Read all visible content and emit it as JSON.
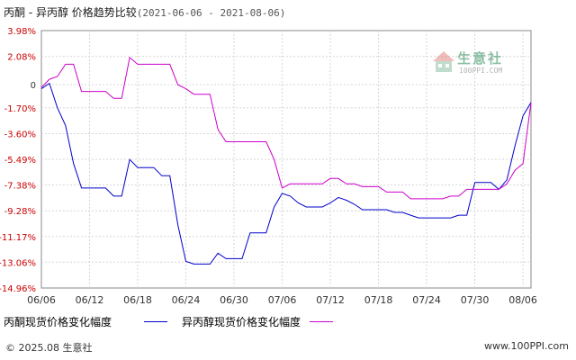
{
  "header": {
    "title": "丙酮 - 异丙醇 价格趋势比较",
    "date_range": "(2021-06-06 - 2021-08-06)"
  },
  "watermark": {
    "name": "生意社",
    "url": "100PPI.COM",
    "colors": {
      "green": "#2e8b57",
      "red": "#d9534f"
    }
  },
  "footer": {
    "copyright": "© 2025.08 生意社",
    "site": "www.100PPI.com"
  },
  "chart_data": {
    "type": "line",
    "title": "丙酮 - 异丙醇 价格趋势比较",
    "x_tick_labels": [
      "06/06",
      "06/12",
      "06/18",
      "06/24",
      "06/30",
      "07/06",
      "07/12",
      "07/18",
      "07/24",
      "07/30",
      "08/06"
    ],
    "x_range": [
      "2021-06-06",
      "2021-08-06"
    ],
    "y_tick_labels": [
      "3.98%",
      "2.08%",
      "0",
      "-1.70%",
      "-3.60%",
      "-5.49%",
      "-7.38%",
      "-9.28%",
      "-11.17%",
      "-13.06%",
      "-14.96%"
    ],
    "y_ticks": [
      3.98,
      2.08,
      0,
      -1.7,
      -3.6,
      -5.49,
      -7.38,
      -9.28,
      -11.17,
      -13.06,
      -14.96
    ],
    "ylim": [
      -14.96,
      3.98
    ],
    "grid": true,
    "legend_position": "bottom",
    "series": [
      {
        "name": "丙酮现货价格变化幅度",
        "color": "#0000cc",
        "points": [
          [
            "2021-06-06",
            -0.3
          ],
          [
            "2021-06-07",
            0.1
          ],
          [
            "2021-06-08",
            -1.7
          ],
          [
            "2021-06-09",
            -3.0
          ],
          [
            "2021-06-10",
            -5.8
          ],
          [
            "2021-06-11",
            -7.6
          ],
          [
            "2021-06-12",
            -7.6
          ],
          [
            "2021-06-13",
            -7.6
          ],
          [
            "2021-06-14",
            -7.6
          ],
          [
            "2021-06-15",
            -8.2
          ],
          [
            "2021-06-16",
            -8.2
          ],
          [
            "2021-06-17",
            -5.5
          ],
          [
            "2021-06-18",
            -6.1
          ],
          [
            "2021-06-19",
            -6.1
          ],
          [
            "2021-06-20",
            -6.1
          ],
          [
            "2021-06-21",
            -6.7
          ],
          [
            "2021-06-22",
            -6.7
          ],
          [
            "2021-06-23",
            -10.3
          ],
          [
            "2021-06-24",
            -13.0
          ],
          [
            "2021-06-25",
            -13.2
          ],
          [
            "2021-06-26",
            -13.2
          ],
          [
            "2021-06-27",
            -13.2
          ],
          [
            "2021-06-28",
            -12.4
          ],
          [
            "2021-06-29",
            -12.8
          ],
          [
            "2021-06-30",
            -12.8
          ],
          [
            "2021-07-01",
            -12.8
          ],
          [
            "2021-07-02",
            -10.9
          ],
          [
            "2021-07-03",
            -10.9
          ],
          [
            "2021-07-04",
            -10.9
          ],
          [
            "2021-07-05",
            -9.0
          ],
          [
            "2021-07-06",
            -8.0
          ],
          [
            "2021-07-07",
            -8.2
          ],
          [
            "2021-07-08",
            -8.7
          ],
          [
            "2021-07-09",
            -9.0
          ],
          [
            "2021-07-10",
            -9.0
          ],
          [
            "2021-07-11",
            -9.0
          ],
          [
            "2021-07-12",
            -8.7
          ],
          [
            "2021-07-13",
            -8.3
          ],
          [
            "2021-07-14",
            -8.5
          ],
          [
            "2021-07-15",
            -8.8
          ],
          [
            "2021-07-16",
            -9.2
          ],
          [
            "2021-07-17",
            -9.2
          ],
          [
            "2021-07-18",
            -9.2
          ],
          [
            "2021-07-19",
            -9.2
          ],
          [
            "2021-07-20",
            -9.4
          ],
          [
            "2021-07-21",
            -9.4
          ],
          [
            "2021-07-22",
            -9.6
          ],
          [
            "2021-07-23",
            -9.8
          ],
          [
            "2021-07-24",
            -9.8
          ],
          [
            "2021-07-25",
            -9.8
          ],
          [
            "2021-07-26",
            -9.8
          ],
          [
            "2021-07-27",
            -9.8
          ],
          [
            "2021-07-28",
            -9.6
          ],
          [
            "2021-07-29",
            -9.6
          ],
          [
            "2021-07-30",
            -7.2
          ],
          [
            "2021-07-31",
            -7.2
          ],
          [
            "2021-08-01",
            -7.2
          ],
          [
            "2021-08-02",
            -7.7
          ],
          [
            "2021-08-03",
            -7.0
          ],
          [
            "2021-08-04",
            -4.5
          ],
          [
            "2021-08-05",
            -2.3
          ],
          [
            "2021-08-06",
            -1.3
          ]
        ]
      },
      {
        "name": "异丙醇现货价格变化幅度",
        "color": "#cc00cc",
        "points": [
          [
            "2021-06-06",
            -0.2
          ],
          [
            "2021-06-07",
            0.4
          ],
          [
            "2021-06-08",
            0.6
          ],
          [
            "2021-06-09",
            1.5
          ],
          [
            "2021-06-10",
            1.5
          ],
          [
            "2021-06-11",
            -0.5
          ],
          [
            "2021-06-12",
            -0.5
          ],
          [
            "2021-06-13",
            -0.5
          ],
          [
            "2021-06-14",
            -0.5
          ],
          [
            "2021-06-15",
            -1.0
          ],
          [
            "2021-06-16",
            -1.0
          ],
          [
            "2021-06-17",
            2.0
          ],
          [
            "2021-06-18",
            1.5
          ],
          [
            "2021-06-19",
            1.5
          ],
          [
            "2021-06-20",
            1.5
          ],
          [
            "2021-06-21",
            1.5
          ],
          [
            "2021-06-22",
            1.5
          ],
          [
            "2021-06-23",
            0.0
          ],
          [
            "2021-06-24",
            -0.3
          ],
          [
            "2021-06-25",
            -0.7
          ],
          [
            "2021-06-26",
            -0.7
          ],
          [
            "2021-06-27",
            -0.7
          ],
          [
            "2021-06-28",
            -3.3
          ],
          [
            "2021-06-29",
            -4.2
          ],
          [
            "2021-06-30",
            -4.2
          ],
          [
            "2021-07-01",
            -4.2
          ],
          [
            "2021-07-02",
            -4.2
          ],
          [
            "2021-07-03",
            -4.2
          ],
          [
            "2021-07-04",
            -4.2
          ],
          [
            "2021-07-05",
            -5.5
          ],
          [
            "2021-07-06",
            -7.6
          ],
          [
            "2021-07-07",
            -7.3
          ],
          [
            "2021-07-08",
            -7.3
          ],
          [
            "2021-07-09",
            -7.3
          ],
          [
            "2021-07-10",
            -7.3
          ],
          [
            "2021-07-11",
            -7.3
          ],
          [
            "2021-07-12",
            -6.9
          ],
          [
            "2021-07-13",
            -6.9
          ],
          [
            "2021-07-14",
            -7.3
          ],
          [
            "2021-07-15",
            -7.3
          ],
          [
            "2021-07-16",
            -7.5
          ],
          [
            "2021-07-17",
            -7.5
          ],
          [
            "2021-07-18",
            -7.5
          ],
          [
            "2021-07-19",
            -7.9
          ],
          [
            "2021-07-20",
            -7.9
          ],
          [
            "2021-07-21",
            -7.9
          ],
          [
            "2021-07-22",
            -8.4
          ],
          [
            "2021-07-23",
            -8.4
          ],
          [
            "2021-07-24",
            -8.4
          ],
          [
            "2021-07-25",
            -8.4
          ],
          [
            "2021-07-26",
            -8.4
          ],
          [
            "2021-07-27",
            -8.2
          ],
          [
            "2021-07-28",
            -8.2
          ],
          [
            "2021-07-29",
            -7.7
          ],
          [
            "2021-07-30",
            -7.7
          ],
          [
            "2021-07-31",
            -7.7
          ],
          [
            "2021-08-01",
            -7.7
          ],
          [
            "2021-08-02",
            -7.7
          ],
          [
            "2021-08-03",
            -7.3
          ],
          [
            "2021-08-04",
            -6.3
          ],
          [
            "2021-08-05",
            -5.8
          ],
          [
            "2021-08-06",
            -1.3
          ]
        ]
      }
    ]
  }
}
